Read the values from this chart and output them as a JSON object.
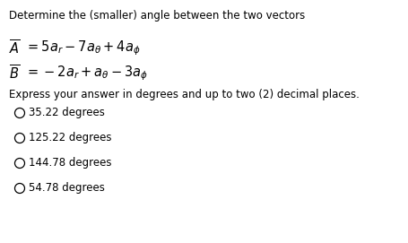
{
  "background_color": "#ffffff",
  "text_color": "#000000",
  "title_text": "Determine the (smaller) angle between the two vectors",
  "title_fontsize": 8.5,
  "eq_fontsize": 10.5,
  "body_fontsize": 8.5,
  "choice_fontsize": 8.5,
  "choices": [
    "35.22 degrees",
    "125.22 degrees",
    "144.78 degrees",
    "54.78 degrees"
  ]
}
